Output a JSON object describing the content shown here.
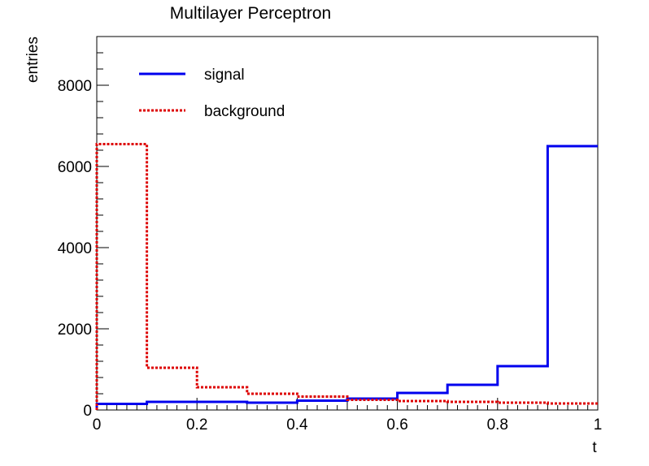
{
  "chart_data": {
    "type": "histogram",
    "title": "Multilayer Perceptron",
    "xlabel": "t",
    "ylabel": "entries",
    "xlim": [
      0,
      1
    ],
    "ylim": [
      0,
      9200
    ],
    "x_ticks": [
      "0",
      "0.2",
      "0.4",
      "0.6",
      "0.8",
      "1"
    ],
    "y_ticks": [
      "0",
      "2000",
      "4000",
      "6000",
      "8000"
    ],
    "bin_edges": [
      0,
      0.1,
      0.2,
      0.3,
      0.4,
      0.5,
      0.6,
      0.7,
      0.8,
      0.9,
      1.0
    ],
    "series": [
      {
        "name": "signal",
        "color": "#0000ee",
        "style": "solid",
        "values": [
          150,
          200,
          200,
          180,
          230,
          280,
          420,
          620,
          1080,
          6500
        ]
      },
      {
        "name": "background",
        "color": "#dd0000",
        "style": "dotted",
        "values": [
          6550,
          1040,
          560,
          400,
          330,
          250,
          220,
          200,
          180,
          160
        ]
      }
    ],
    "legend_position": "top-left",
    "grid": false
  }
}
